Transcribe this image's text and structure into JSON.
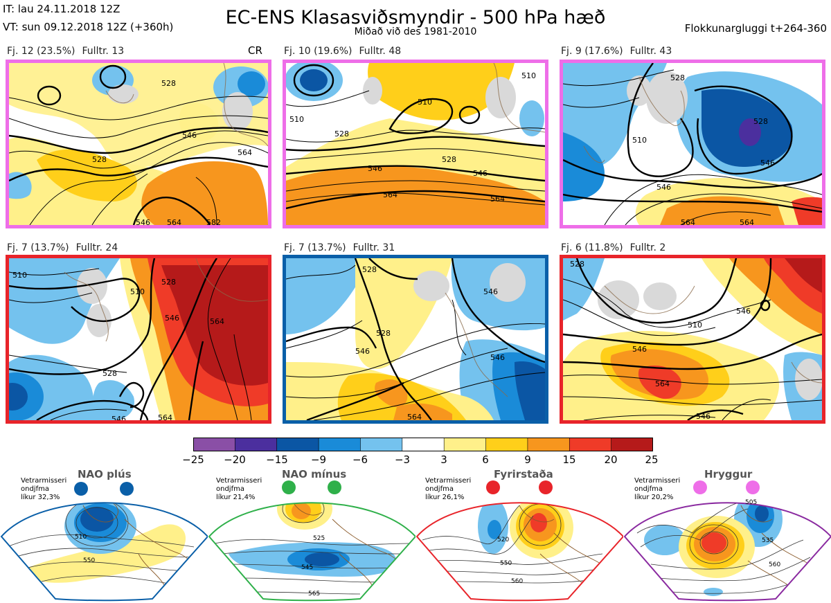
{
  "header": {
    "it": "IT: lau 24.11.2018 12Z",
    "vt": "VT: sun 09.12.2018 12Z  (+360h)",
    "title": "EC-ENS Klasasviðsmyndir - 500 hPa hæð",
    "subtitle": "Miðað við des 1981-2010",
    "window": "Flokkunargluggi t+264-360",
    "cr": "CR"
  },
  "panels": [
    {
      "cluster": "Fj. 12 (23.5%)",
      "rep": "Fulltr. 13",
      "regime_color": "#ee6ee8",
      "contours": [
        "528",
        "528",
        "546",
        "564",
        "546",
        "564",
        "582"
      ]
    },
    {
      "cluster": "Fj. 10 (19.6%)",
      "rep": "Fulltr. 48",
      "regime_color": "#ee6ee8",
      "contours": [
        "510",
        "510",
        "510",
        "528",
        "528",
        "546",
        "546",
        "564",
        "564"
      ]
    },
    {
      "cluster": "Fj. 9 (17.6%)",
      "rep": "Fulltr. 43",
      "regime_color": "#ee6ee8",
      "contours": [
        "510",
        "528",
        "528",
        "546",
        "546",
        "564",
        "564"
      ]
    },
    {
      "cluster": "Fj. 7 (13.7%)",
      "rep": "Fulltr. 24",
      "regime_color": "#e8242a",
      "contours": [
        "510",
        "510",
        "528",
        "528",
        "546",
        "546",
        "564",
        "564"
      ]
    },
    {
      "cluster": "Fj. 7 (13.7%)",
      "rep": "Fulltr. 31",
      "regime_color": "#0a5fa8",
      "contours": [
        "528",
        "528",
        "546",
        "546",
        "546",
        "564"
      ]
    },
    {
      "cluster": "Fj. 6 (11.8%)",
      "rep": "Fulltr. 2",
      "regime_color": "#e8242a",
      "contours": [
        "528",
        "510",
        "546",
        "546",
        "564",
        "546"
      ]
    }
  ],
  "colorbar": {
    "ticks": [
      "−25",
      "−20",
      "−15",
      "−9",
      "−6",
      "−3",
      "3",
      "6",
      "9",
      "15",
      "20",
      "25"
    ],
    "colors": [
      "#8a4fa6",
      "#4b2f9e",
      "#0b56a4",
      "#1a8bd8",
      "#74c2ee",
      "#ffffff",
      "#fff08a",
      "#ffcf1a",
      "#f7961e",
      "#ef3b28",
      "#b51a1a"
    ]
  },
  "regimes": [
    {
      "name": "NAO plús",
      "note": [
        "Vetrarmisseri",
        "ondjfma",
        "líkur 32,3%"
      ],
      "color": "#0a5fa8",
      "contours": [
        "510",
        "550"
      ]
    },
    {
      "name": "NAO mínus",
      "note": [
        "Vetrarmisseri",
        "ondjfma",
        "líkur 21,4%"
      ],
      "color": "#2fb04a",
      "contours": [
        "525",
        "545",
        "565"
      ]
    },
    {
      "name": "Fyrirstaða",
      "note": [
        "Vetrarmisseri",
        "ondjfma",
        "líkur 26,1%"
      ],
      "color": "#e8242a",
      "contours": [
        "520",
        "550",
        "560"
      ]
    },
    {
      "name": "Hryggur",
      "note": [
        "Vetrarmisseri",
        "ondjfma",
        "líkur 20,2%"
      ],
      "color": "#8a2aa0",
      "contours": [
        "505",
        "535",
        "560"
      ]
    }
  ]
}
